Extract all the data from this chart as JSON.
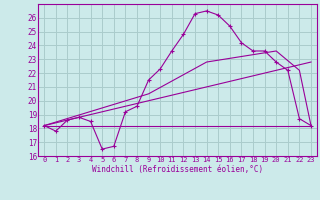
{
  "xlabel": "Windchill (Refroidissement éolien,°C)",
  "bg_color": "#cceaea",
  "grid_color": "#aacccc",
  "line_color": "#990099",
  "xlim": [
    -0.5,
    23.5
  ],
  "ylim": [
    16,
    27
  ],
  "xticks": [
    0,
    1,
    2,
    3,
    4,
    5,
    6,
    7,
    8,
    9,
    10,
    11,
    12,
    13,
    14,
    15,
    16,
    17,
    18,
    19,
    20,
    21,
    22,
    23
  ],
  "yticks": [
    16,
    17,
    18,
    19,
    20,
    21,
    22,
    23,
    24,
    25,
    26
  ],
  "series1_x": [
    0,
    1,
    2,
    3,
    4,
    5,
    6,
    7,
    8,
    9,
    10,
    11,
    12,
    13,
    14,
    15,
    16,
    17,
    18,
    19,
    20,
    21,
    22,
    23
  ],
  "series1_y": [
    18.2,
    17.8,
    18.6,
    18.8,
    18.5,
    16.5,
    16.7,
    19.2,
    19.6,
    21.5,
    22.3,
    23.6,
    24.8,
    26.3,
    26.5,
    26.2,
    25.4,
    24.2,
    23.6,
    23.6,
    22.8,
    22.2,
    18.7,
    18.2
  ],
  "series2_x": [
    0,
    23
  ],
  "series2_y": [
    18.2,
    18.2
  ],
  "series3_x": [
    0,
    23
  ],
  "series3_y": [
    18.2,
    22.8
  ],
  "series4_x": [
    0,
    9,
    14,
    20,
    21,
    22,
    23
  ],
  "series4_y": [
    18.2,
    20.5,
    22.8,
    23.6,
    22.9,
    22.2,
    18.2
  ]
}
